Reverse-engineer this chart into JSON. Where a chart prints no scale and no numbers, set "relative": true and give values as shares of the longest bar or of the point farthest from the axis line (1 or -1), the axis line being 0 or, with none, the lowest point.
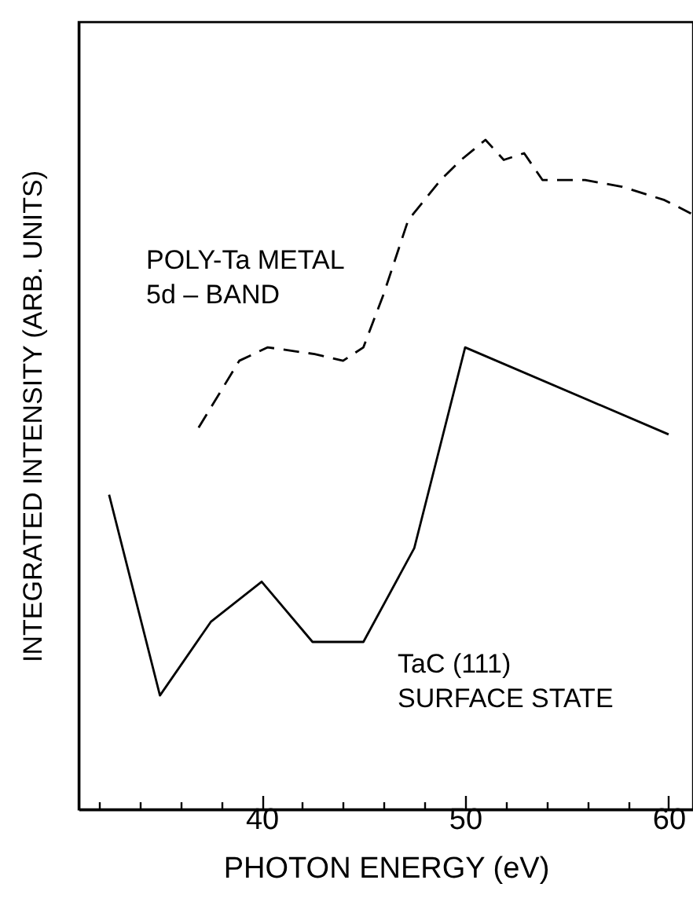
{
  "chart_data": {
    "type": "line",
    "relative": true,
    "xlabel": "PHOTON ENERGY (eV)",
    "ylabel": "INTEGRATED INTENSITY (ARB. UNITS)",
    "xlim": [
      31,
      61.2
    ],
    "xticks": [
      {
        "value": 32,
        "label": null
      },
      {
        "value": 34,
        "label": null
      },
      {
        "value": 36,
        "label": null
      },
      {
        "value": 38,
        "label": null
      },
      40,
      {
        "value": 42,
        "label": null
      },
      {
        "value": 44,
        "label": null
      },
      {
        "value": 46,
        "label": null
      },
      {
        "value": 48,
        "label": null
      },
      50,
      {
        "value": 52,
        "label": null
      },
      {
        "value": 54,
        "label": null
      },
      {
        "value": 56,
        "label": null
      },
      {
        "value": 58,
        "label": null
      },
      60
    ],
    "grid": false,
    "legend": false,
    "marker": "none",
    "series": [
      {
        "name": "POLY-Ta METAL\n5d – BAND",
        "color": "#000000",
        "line_style": "dashed",
        "x": [
          36.9,
          38.9,
          40.3,
          42.6,
          44.0,
          45.0,
          46.0,
          47.2,
          48.8,
          49.8,
          51.0,
          51.9,
          52.9,
          53.8,
          55.9,
          57.7,
          59.8,
          61.1
        ],
        "values": [
          0.57,
          0.67,
          0.69,
          0.68,
          0.67,
          0.69,
          0.77,
          0.88,
          0.94,
          0.97,
          1,
          0.97,
          0.98,
          0.94,
          0.94,
          0.93,
          0.91,
          0.89
        ]
      },
      {
        "name": "TaC (111)\nSURFACE STATE",
        "color": "#000000",
        "line_style": "solid",
        "x": [
          32.5,
          35.0,
          37.5,
          40.0,
          42.5,
          45.0,
          47.5,
          50.0,
          60.0
        ],
        "values": [
          0.47,
          0.17,
          0.28,
          0.34,
          0.25,
          0.25,
          0.39,
          0.69,
          0.56
        ]
      }
    ]
  }
}
